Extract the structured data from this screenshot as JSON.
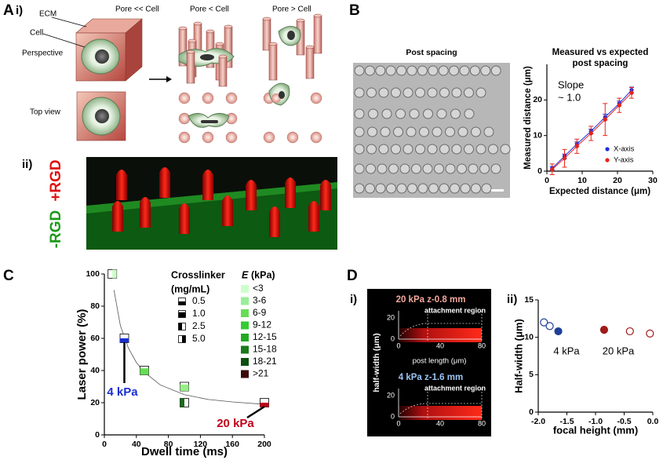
{
  "panel_labels": {
    "a": "A",
    "a_i": "i)",
    "a_ii": "ii)",
    "b": "B",
    "c": "C",
    "d": "D",
    "d_i": "i)",
    "d_ii": "ii)"
  },
  "panel_a": {
    "ecm": "ECM",
    "pore_much_smaller": "Pore << Cell",
    "cell": "Cell",
    "perspective": "Perspective",
    "pore_smaller": "Pore < Cell",
    "pore_larger": "Pore > Cell",
    "top_view": "Top view",
    "minus_rgd": "-RGD",
    "plus_rgd": "+RGD"
  },
  "panel_b": {
    "micrograph_title": "Post spacing"
  },
  "panel_d_i": {
    "top_title": "20 kPa z-0.8 mm",
    "bottom_title": "4 kPa z-1.6 mm",
    "region": "attachment region",
    "y_label": "half-width (μm)",
    "x_label": "post length (μm)",
    "yticks": [
      20,
      0
    ],
    "xticks": [
      0,
      40,
      80
    ]
  },
  "chart_data": [
    {
      "type": "line",
      "title_lines": [
        "Measured vs expected",
        "post spacing"
      ],
      "x_label": "Expected distance (μm)",
      "y_label": "Measured distance (μm)",
      "annotation_lines": [
        "Slope",
        "~ 1.0"
      ],
      "xlim": [
        0,
        30
      ],
      "xticks": [
        0,
        10,
        20,
        30
      ],
      "ylim": [
        0,
        30
      ],
      "yticks": [
        0,
        10,
        20
      ],
      "series": [
        {
          "name": "X-axis",
          "color": "#1f2fd6",
          "x": [
            1.5,
            5,
            8.5,
            12.5,
            16.5,
            20.5,
            24
          ],
          "values": [
            0.8,
            4.2,
            7.6,
            11.2,
            15.2,
            19,
            22.8
          ],
          "errors": [
            0.5,
            0.6,
            0.6,
            0.6,
            0.8,
            0.7,
            0.8
          ]
        },
        {
          "name": "Y-axis",
          "color": "#e8241a",
          "x": [
            1.5,
            5,
            8.5,
            12.5,
            16.5,
            20.5,
            24
          ],
          "values": [
            0.5,
            3.6,
            7,
            10.6,
            14.5,
            18.5,
            22
          ],
          "errors": [
            1.5,
            2.5,
            2,
            2,
            4.5,
            2,
            1.5
          ]
        }
      ],
      "legend": "lower right"
    },
    {
      "type": "scatter",
      "x_label": "Dwell time (ms)",
      "y_label": "Laser power (%)",
      "xlim": [
        0,
        200
      ],
      "xticks": [
        0,
        40,
        80,
        120,
        160,
        200
      ],
      "ylim": [
        0,
        100
      ],
      "yticks": [
        0,
        20,
        40,
        60,
        80,
        100
      ],
      "points": {
        "x": [
          10,
          25,
          50,
          100,
          100,
          200
        ],
        "values": [
          100,
          60,
          40,
          30,
          20,
          20
        ],
        "colors": [
          "#ccffcc",
          "#1a2fd0",
          "#66dd55",
          "#99ee88",
          "#1a6b1a",
          "#c0001a"
        ],
        "crosslinker": [
          "5.0",
          "0.5",
          "1.0",
          "1.0",
          "2.5",
          "0.5"
        ]
      },
      "fit": {
        "color": "#555555",
        "x": [
          12,
          20,
          30,
          40,
          50,
          70,
          100,
          130,
          160,
          200
        ],
        "values": [
          90,
          68,
          54,
          45,
          39,
          31,
          25,
          22,
          20.5,
          19
        ]
      },
      "crosslinker_title": [
        "Crosslinker",
        "(mg/mL)"
      ],
      "crosslinker_legend": [
        "0.5",
        "1.0",
        "2.5",
        "5.0"
      ],
      "e_title": "E",
      "e_unit": "(kPa)",
      "e_legend": [
        {
          "label": "<3",
          "color": "#ccffcc"
        },
        {
          "label": "3-6",
          "color": "#99ee99"
        },
        {
          "label": "6-9",
          "color": "#66dd55"
        },
        {
          "label": "9-12",
          "color": "#33cc33"
        },
        {
          "label": "12-15",
          "color": "#22aa22"
        },
        {
          "label": "15-18",
          "color": "#1a7a1a"
        },
        {
          "label": "18-21",
          "color": "#0f4f0f"
        },
        {
          "label": ">21",
          "color": "#3a0a0a"
        }
      ],
      "annotations": [
        {
          "text": "4 kPa",
          "color": "#1a2fd0"
        },
        {
          "text": "20 kPa",
          "color": "#c0001a"
        }
      ]
    },
    {
      "type": "scatter",
      "x_label": "focal height (mm)",
      "y_label": "Half-width (μm)",
      "xlim": [
        -2,
        0
      ],
      "xticks": [
        {
          "value": -2,
          "label": "-2.0"
        },
        -1.5,
        {
          "value": -1,
          "label": "-1.0"
        },
        -0.5,
        {
          "value": 0,
          "label": "0.0"
        }
      ],
      "ylim": [
        0,
        15
      ],
      "yticks": [
        0,
        5,
        10,
        15
      ],
      "series": [
        {
          "name": "4 kPa",
          "color": "#1f3f99",
          "x": [
            -1.9,
            -1.8,
            -1.65
          ],
          "values": [
            12,
            11.5,
            10.8
          ],
          "filled": [
            false,
            false,
            true
          ]
        },
        {
          "name": "20 kPa",
          "color": "#a01a1a",
          "x": [
            -0.85,
            -0.4,
            -0.05
          ],
          "values": [
            11,
            10.8,
            10.5
          ],
          "filled": [
            true,
            false,
            false
          ]
        }
      ]
    }
  ]
}
